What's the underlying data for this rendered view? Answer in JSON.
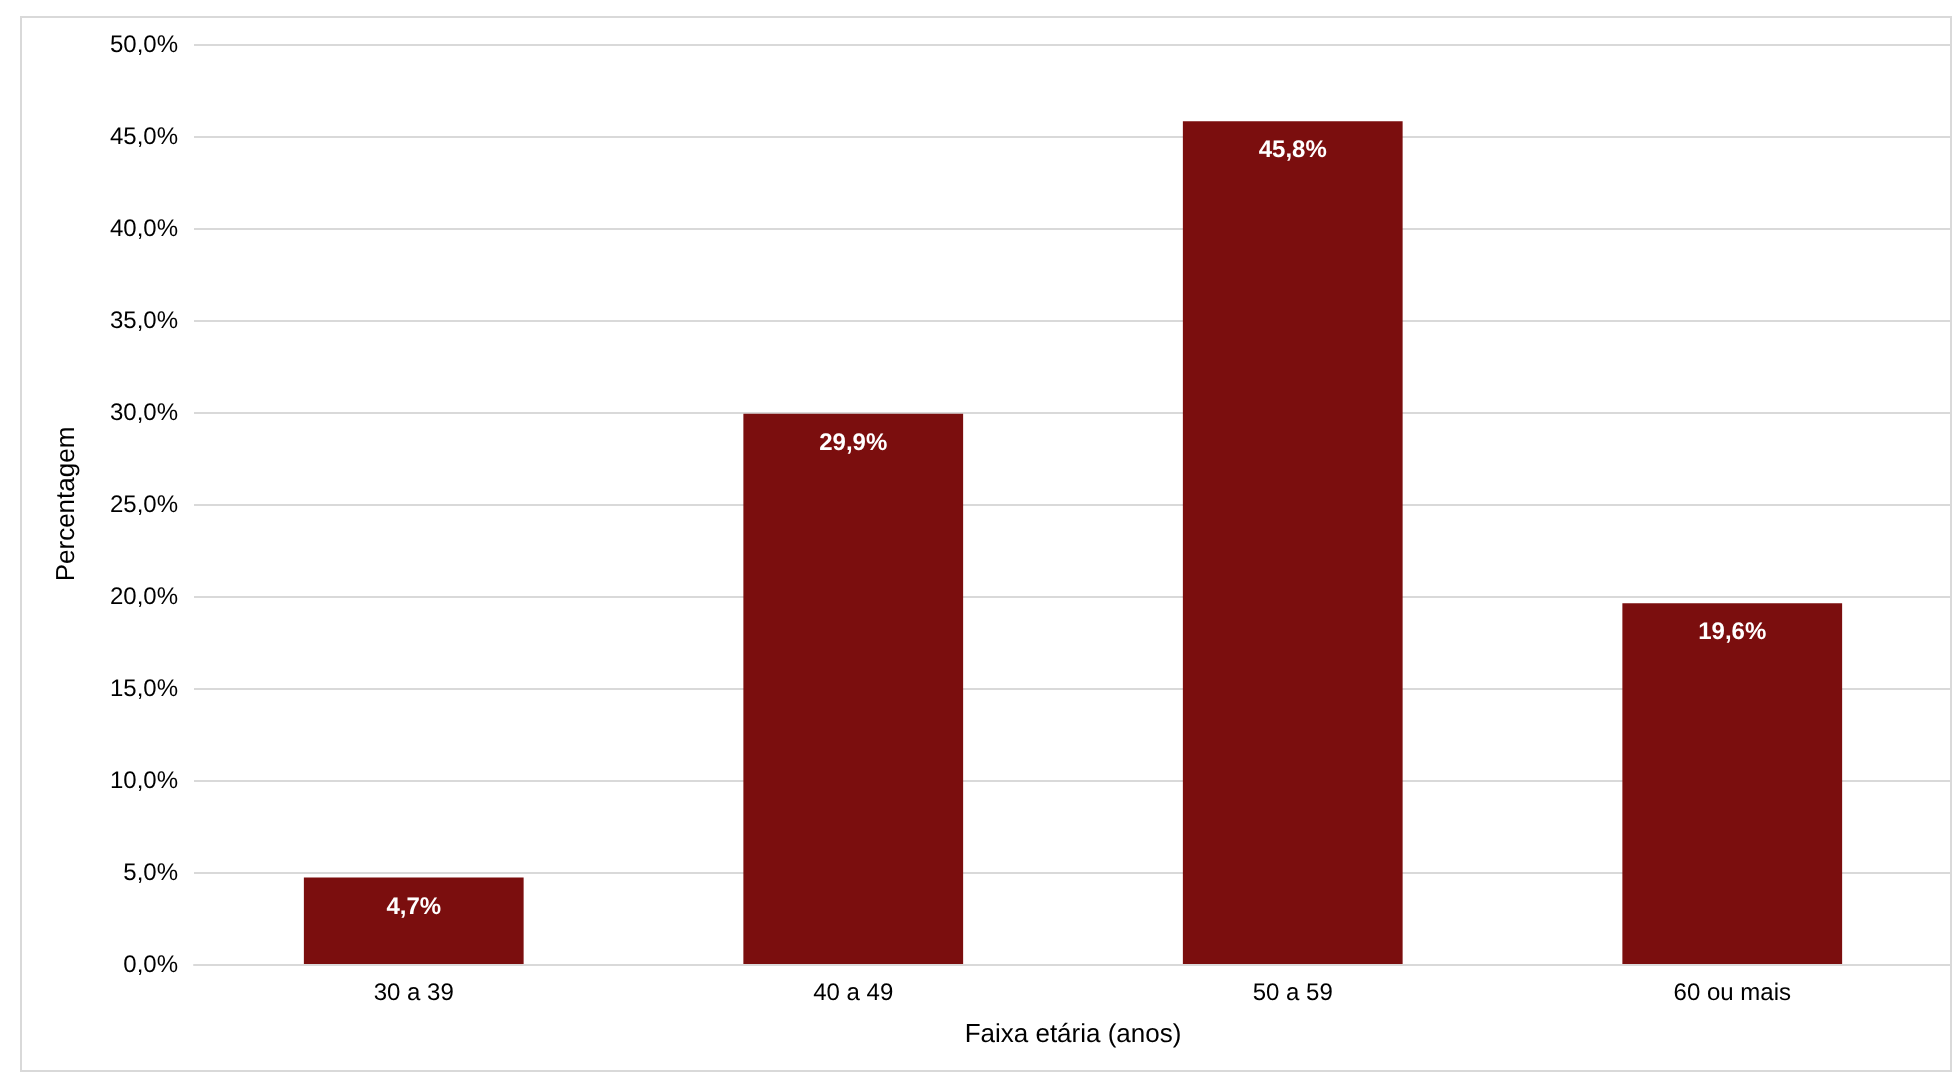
{
  "chart_data": {
    "type": "bar",
    "xlabel": "Faixa etária (anos)",
    "ylabel": "Percentagem",
    "categories": [
      "30 a 39",
      "40 a 49",
      "50 a 59",
      "60 ou mais"
    ],
    "values": [
      4.7,
      29.9,
      45.8,
      19.6
    ],
    "value_labels": [
      "4,7%",
      "29,9%",
      "45,8%",
      "19,6%"
    ],
    "color": "#7b0e0e",
    "ylim": [
      0,
      50
    ],
    "yticks": [
      {
        "value": 0,
        "label": "0,0%"
      },
      {
        "value": 5,
        "label": "5,0%"
      },
      {
        "value": 10,
        "label": "10,0%"
      },
      {
        "value": 15,
        "label": "15,0%"
      },
      {
        "value": 20,
        "label": "20,0%"
      },
      {
        "value": 25,
        "label": "25,0%"
      },
      {
        "value": 30,
        "label": "30,0%"
      },
      {
        "value": 35,
        "label": "35,0%"
      },
      {
        "value": 40,
        "label": "40,0%"
      },
      {
        "value": 45,
        "label": "45,0%"
      },
      {
        "value": 50,
        "label": "50,0%"
      }
    ],
    "grid": "y"
  }
}
